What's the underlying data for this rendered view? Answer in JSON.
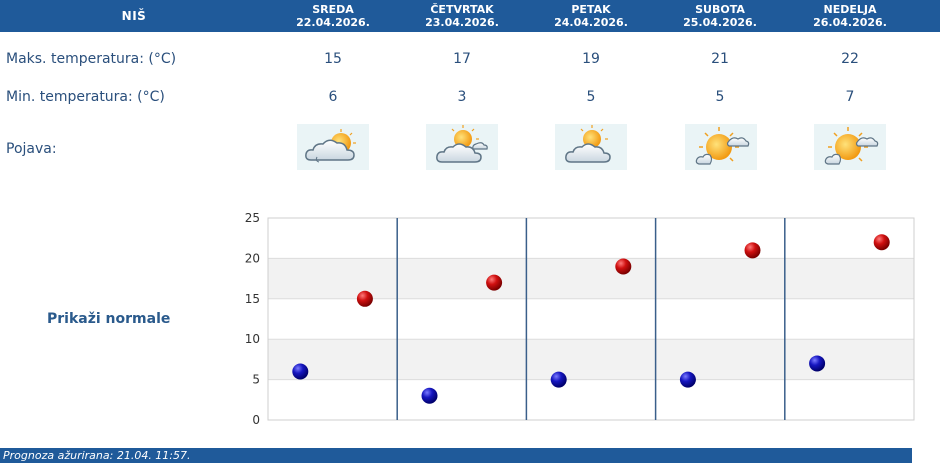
{
  "header": {
    "city": "NIŠ",
    "days": [
      {
        "name": "SREDA",
        "date": "22.04.2026."
      },
      {
        "name": "ČETVRTAK",
        "date": "23.04.2026."
      },
      {
        "name": "PETAK",
        "date": "24.04.2026."
      },
      {
        "name": "SUBOTA",
        "date": "25.04.2026."
      },
      {
        "name": "NEDELJA",
        "date": "26.04.2026."
      }
    ]
  },
  "rows": {
    "max_label": "Maks. temperatura: (°C)",
    "min_label": "Min. temperatura: (°C)",
    "phenomenon_label": "Pojava:"
  },
  "forecast": {
    "max": [
      "15",
      "17",
      "19",
      "21",
      "22"
    ],
    "min": [
      "6",
      "3",
      "5",
      "5",
      "7"
    ],
    "icons": [
      "cloudy-sun-icon",
      "partly-cloudy-icon",
      "partly-cloudy-icon",
      "sunny-cloud-icon",
      "sunny-cloud-icon"
    ]
  },
  "normals_link": "Prikaži normale",
  "footer": {
    "text": "Prognoza ažurirana:  21.04. 11:57."
  },
  "chart_data": {
    "type": "scatter",
    "categories": [
      "SREDA",
      "ČETVRTAK",
      "PETAK",
      "SUBOTA",
      "NEDELJA"
    ],
    "series": [
      {
        "values": [
          6,
          3,
          5,
          5,
          7
        ],
        "color": "#1a1ab8"
      },
      {
        "values": [
          15,
          17,
          19,
          21,
          22
        ],
        "color": "#c81414"
      }
    ],
    "yticks": [
      "0",
      "5",
      "10",
      "15",
      "20",
      "25"
    ],
    "ylim": [
      0,
      25
    ],
    "grid": true,
    "band_colors": [
      "#ffffff",
      "#f2f2f2"
    ],
    "divider_color": "#3a5f8a"
  }
}
